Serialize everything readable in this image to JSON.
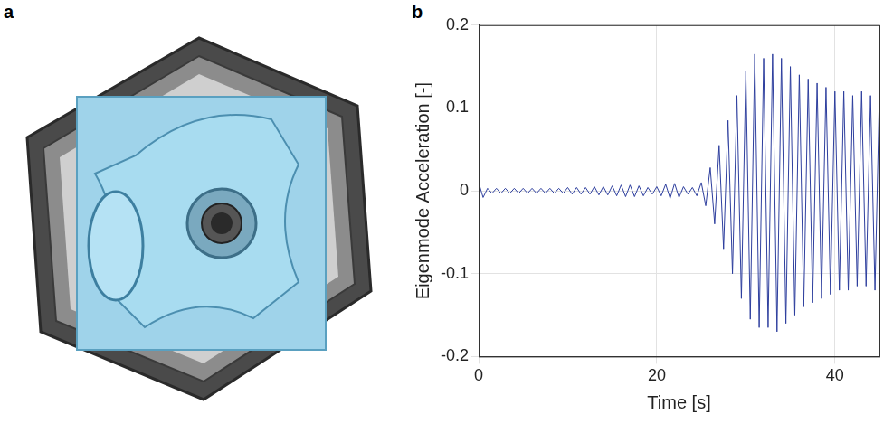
{
  "panel_a": {
    "label": "a"
  },
  "chart_data": {
    "panel_label": "b",
    "type": "line",
    "x_label": "Time [s]",
    "y_label": "Eigenmode Acceleration [-]",
    "color": "#2e3f9e",
    "grid": true,
    "xlim": [
      0,
      45
    ],
    "xticks": [
      0,
      20,
      40
    ],
    "ylim": [
      -0.2,
      0.2
    ],
    "yticks": [
      -0.2,
      -0.1,
      0,
      0.1,
      0.2
    ],
    "x": [
      0,
      0.5,
      1,
      1.5,
      2,
      2.5,
      3,
      3.5,
      4,
      4.5,
      5,
      5.5,
      6,
      6.5,
      7,
      7.5,
      8,
      8.5,
      9,
      9.5,
      10,
      10.5,
      11,
      11.5,
      12,
      12.5,
      13,
      13.5,
      14,
      14.5,
      15,
      15.5,
      16,
      16.5,
      17,
      17.5,
      18,
      18.5,
      19,
      19.5,
      20,
      20.5,
      21,
      21.5,
      22,
      22.5,
      23,
      23.5,
      24,
      24.5,
      25,
      25.5,
      26,
      26.5,
      27,
      27.5,
      28,
      28.5,
      29,
      29.5,
      30,
      30.5,
      31,
      31.5,
      32,
      32.5,
      33,
      33.5,
      34,
      34.5,
      35,
      35.5,
      36,
      36.5,
      37,
      37.5,
      38,
      38.5,
      39,
      39.5,
      40,
      40.5,
      41,
      41.5,
      42,
      42.5,
      43,
      43.5,
      44,
      44.5,
      45
    ],
    "values": [
      0.01,
      -0.008,
      0.003,
      -0.003,
      0.003,
      -0.003,
      0.003,
      -0.003,
      0.003,
      -0.003,
      0.003,
      -0.003,
      0.003,
      -0.003,
      0.003,
      -0.003,
      0.003,
      -0.003,
      0.003,
      -0.003,
      0.004,
      -0.004,
      0.004,
      -0.004,
      0.004,
      -0.004,
      0.005,
      -0.005,
      0.005,
      -0.005,
      0.006,
      -0.006,
      0.007,
      -0.007,
      0.007,
      -0.007,
      0.006,
      -0.006,
      0.004,
      -0.004,
      0.005,
      -0.006,
      0.008,
      -0.009,
      0.009,
      -0.008,
      0.005,
      -0.004,
      0.004,
      -0.006,
      0.01,
      -0.018,
      0.028,
      -0.04,
      0.055,
      -0.07,
      0.085,
      -0.1,
      0.115,
      -0.13,
      0.145,
      -0.155,
      0.165,
      -0.165,
      0.16,
      -0.165,
      0.165,
      -0.17,
      0.16,
      -0.16,
      0.15,
      -0.15,
      0.14,
      -0.14,
      0.135,
      -0.135,
      0.13,
      -0.13,
      0.125,
      -0.125,
      0.12,
      -0.12,
      0.12,
      -0.12,
      0.115,
      -0.115,
      0.12,
      -0.115,
      0.115,
      -0.12,
      0.12
    ]
  }
}
